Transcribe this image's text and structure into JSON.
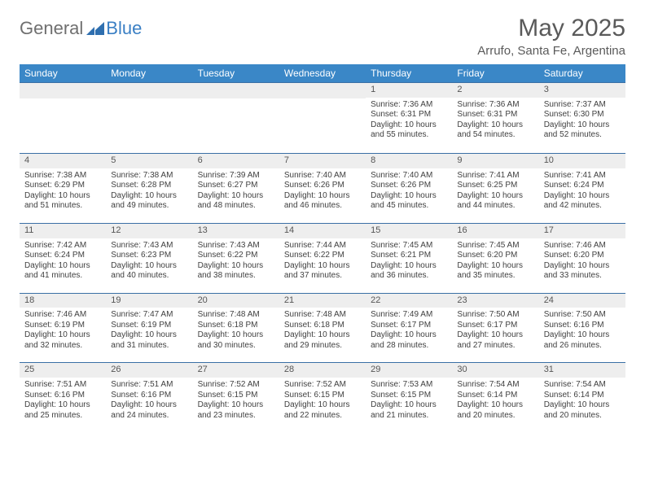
{
  "brand": {
    "general": "General",
    "blue": "Blue"
  },
  "header": {
    "title": "May 2025",
    "location": "Arrufo, Santa Fe, Argentina"
  },
  "colors": {
    "header_bg": "#3a87c7",
    "header_text": "#ffffff",
    "day_strip_bg": "#eeeeee",
    "day_border": "#3a6fa5",
    "text": "#404040",
    "title": "#5a5a5a",
    "brand_grey": "#6f6f6f",
    "brand_blue": "#3a7fc4"
  },
  "day_names": [
    "Sunday",
    "Monday",
    "Tuesday",
    "Wednesday",
    "Thursday",
    "Friday",
    "Saturday"
  ],
  "leading_blanks": 4,
  "days": [
    {
      "n": 1,
      "sunrise": "7:36 AM",
      "sunset": "6:31 PM",
      "daylight": "10 hours and 55 minutes."
    },
    {
      "n": 2,
      "sunrise": "7:36 AM",
      "sunset": "6:31 PM",
      "daylight": "10 hours and 54 minutes."
    },
    {
      "n": 3,
      "sunrise": "7:37 AM",
      "sunset": "6:30 PM",
      "daylight": "10 hours and 52 minutes."
    },
    {
      "n": 4,
      "sunrise": "7:38 AM",
      "sunset": "6:29 PM",
      "daylight": "10 hours and 51 minutes."
    },
    {
      "n": 5,
      "sunrise": "7:38 AM",
      "sunset": "6:28 PM",
      "daylight": "10 hours and 49 minutes."
    },
    {
      "n": 6,
      "sunrise": "7:39 AM",
      "sunset": "6:27 PM",
      "daylight": "10 hours and 48 minutes."
    },
    {
      "n": 7,
      "sunrise": "7:40 AM",
      "sunset": "6:26 PM",
      "daylight": "10 hours and 46 minutes."
    },
    {
      "n": 8,
      "sunrise": "7:40 AM",
      "sunset": "6:26 PM",
      "daylight": "10 hours and 45 minutes."
    },
    {
      "n": 9,
      "sunrise": "7:41 AM",
      "sunset": "6:25 PM",
      "daylight": "10 hours and 44 minutes."
    },
    {
      "n": 10,
      "sunrise": "7:41 AM",
      "sunset": "6:24 PM",
      "daylight": "10 hours and 42 minutes."
    },
    {
      "n": 11,
      "sunrise": "7:42 AM",
      "sunset": "6:24 PM",
      "daylight": "10 hours and 41 minutes."
    },
    {
      "n": 12,
      "sunrise": "7:43 AM",
      "sunset": "6:23 PM",
      "daylight": "10 hours and 40 minutes."
    },
    {
      "n": 13,
      "sunrise": "7:43 AM",
      "sunset": "6:22 PM",
      "daylight": "10 hours and 38 minutes."
    },
    {
      "n": 14,
      "sunrise": "7:44 AM",
      "sunset": "6:22 PM",
      "daylight": "10 hours and 37 minutes."
    },
    {
      "n": 15,
      "sunrise": "7:45 AM",
      "sunset": "6:21 PM",
      "daylight": "10 hours and 36 minutes."
    },
    {
      "n": 16,
      "sunrise": "7:45 AM",
      "sunset": "6:20 PM",
      "daylight": "10 hours and 35 minutes."
    },
    {
      "n": 17,
      "sunrise": "7:46 AM",
      "sunset": "6:20 PM",
      "daylight": "10 hours and 33 minutes."
    },
    {
      "n": 18,
      "sunrise": "7:46 AM",
      "sunset": "6:19 PM",
      "daylight": "10 hours and 32 minutes."
    },
    {
      "n": 19,
      "sunrise": "7:47 AM",
      "sunset": "6:19 PM",
      "daylight": "10 hours and 31 minutes."
    },
    {
      "n": 20,
      "sunrise": "7:48 AM",
      "sunset": "6:18 PM",
      "daylight": "10 hours and 30 minutes."
    },
    {
      "n": 21,
      "sunrise": "7:48 AM",
      "sunset": "6:18 PM",
      "daylight": "10 hours and 29 minutes."
    },
    {
      "n": 22,
      "sunrise": "7:49 AM",
      "sunset": "6:17 PM",
      "daylight": "10 hours and 28 minutes."
    },
    {
      "n": 23,
      "sunrise": "7:50 AM",
      "sunset": "6:17 PM",
      "daylight": "10 hours and 27 minutes."
    },
    {
      "n": 24,
      "sunrise": "7:50 AM",
      "sunset": "6:16 PM",
      "daylight": "10 hours and 26 minutes."
    },
    {
      "n": 25,
      "sunrise": "7:51 AM",
      "sunset": "6:16 PM",
      "daylight": "10 hours and 25 minutes."
    },
    {
      "n": 26,
      "sunrise": "7:51 AM",
      "sunset": "6:16 PM",
      "daylight": "10 hours and 24 minutes."
    },
    {
      "n": 27,
      "sunrise": "7:52 AM",
      "sunset": "6:15 PM",
      "daylight": "10 hours and 23 minutes."
    },
    {
      "n": 28,
      "sunrise": "7:52 AM",
      "sunset": "6:15 PM",
      "daylight": "10 hours and 22 minutes."
    },
    {
      "n": 29,
      "sunrise": "7:53 AM",
      "sunset": "6:15 PM",
      "daylight": "10 hours and 21 minutes."
    },
    {
      "n": 30,
      "sunrise": "7:54 AM",
      "sunset": "6:14 PM",
      "daylight": "10 hours and 20 minutes."
    },
    {
      "n": 31,
      "sunrise": "7:54 AM",
      "sunset": "6:14 PM",
      "daylight": "10 hours and 20 minutes."
    }
  ],
  "labels": {
    "sunrise": "Sunrise: ",
    "sunset": "Sunset: ",
    "daylight": "Daylight: "
  }
}
